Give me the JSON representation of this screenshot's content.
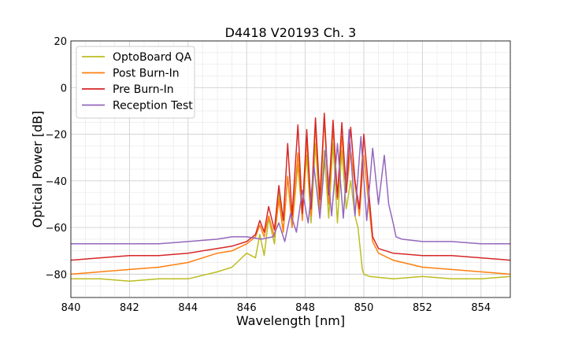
{
  "chart_data": {
    "type": "line",
    "title": "D4418 V20193 Ch. 3",
    "xlabel": "Wavelength [nm]",
    "ylabel": "Optical Power [dB]",
    "xlim": [
      840,
      855
    ],
    "ylim": [
      -90,
      20
    ],
    "x_ticks": [
      840,
      842,
      844,
      846,
      848,
      850,
      852,
      854
    ],
    "y_ticks": [
      20,
      0,
      -20,
      -40,
      -60,
      -80
    ],
    "x_tick_labels": [
      "840",
      "842",
      "844",
      "846",
      "848",
      "850",
      "852",
      "854"
    ],
    "y_tick_labels": [
      "20",
      "0",
      "−20",
      "−40",
      "−60",
      "−80"
    ],
    "grid": true,
    "legend_position": "top-left",
    "series": [
      {
        "name": "OptoBoard QA",
        "color": "#bcbd22",
        "x": [
          840.0,
          841.0,
          842.0,
          843.0,
          844.0,
          845.0,
          845.5,
          846.0,
          846.3,
          846.45,
          846.6,
          846.75,
          846.95,
          847.1,
          847.25,
          847.4,
          847.55,
          847.75,
          847.9,
          848.05,
          848.2,
          848.35,
          848.5,
          848.65,
          848.8,
          848.95,
          849.1,
          849.25,
          849.4,
          849.55,
          849.7,
          849.8,
          849.9,
          849.95,
          850.0,
          850.2,
          851.0,
          852.0,
          853.0,
          854.0,
          855.0
        ],
        "y": [
          -82,
          -82,
          -83,
          -82,
          -82,
          -79,
          -77,
          -71,
          -73,
          -63,
          -72,
          -56,
          -67,
          -45,
          -62,
          -38,
          -60,
          -33,
          -56,
          -29,
          -58,
          -24,
          -55,
          -27,
          -56,
          -24,
          -58,
          -27,
          -52,
          -40,
          -55,
          -60,
          -72,
          -78,
          -80,
          -81,
          -82,
          -81,
          -82,
          -82,
          -81
        ]
      },
      {
        "name": "Post Burn-In",
        "color": "#ff7f0e",
        "x": [
          840.0,
          841.0,
          842.0,
          843.0,
          844.0,
          845.0,
          845.5,
          846.0,
          846.3,
          846.45,
          846.6,
          846.75,
          846.95,
          847.1,
          847.25,
          847.4,
          847.55,
          847.75,
          847.9,
          848.05,
          848.2,
          848.35,
          848.5,
          848.65,
          848.8,
          848.95,
          849.1,
          849.25,
          849.4,
          849.55,
          849.7,
          849.85,
          850.0,
          850.15,
          850.3,
          850.5,
          851.0,
          852.0,
          853.0,
          854.0,
          855.0
        ],
        "y": [
          -80,
          -79,
          -78,
          -77,
          -75,
          -71,
          -70,
          -67,
          -64,
          -59,
          -64,
          -55,
          -64,
          -48,
          -62,
          -38,
          -60,
          -28,
          -57,
          -22,
          -55,
          -16,
          -52,
          -13,
          -50,
          -17,
          -48,
          -21,
          -45,
          -27,
          -42,
          -55,
          -29,
          -48,
          -66,
          -71,
          -74,
          -77,
          -78,
          -79,
          -80
        ]
      },
      {
        "name": "Pre Burn-In",
        "color": "#d62728",
        "x": [
          840.0,
          841.0,
          842.0,
          843.0,
          844.0,
          845.0,
          845.5,
          846.0,
          846.3,
          846.45,
          846.6,
          846.75,
          846.95,
          847.1,
          847.25,
          847.4,
          847.55,
          847.75,
          847.9,
          848.05,
          848.2,
          848.35,
          848.5,
          848.65,
          848.8,
          848.95,
          849.1,
          849.25,
          849.4,
          849.55,
          849.7,
          849.85,
          850.0,
          850.15,
          850.3,
          850.5,
          851.0,
          852.0,
          853.0,
          854.0,
          855.0
        ],
        "y": [
          -74,
          -73,
          -72,
          -72,
          -71,
          -69,
          -68,
          -66,
          -63,
          -57,
          -62,
          -51,
          -61,
          -42,
          -57,
          -24,
          -55,
          -16,
          -54,
          -18,
          -52,
          -13,
          -48,
          -11,
          -46,
          -14,
          -47,
          -15,
          -45,
          -17,
          -40,
          -52,
          -20,
          -42,
          -64,
          -69,
          -71,
          -72,
          -72,
          -73,
          -74
        ]
      },
      {
        "name": "Reception Test",
        "color": "#9467bd",
        "x": [
          840.0,
          841.0,
          842.0,
          843.0,
          844.0,
          845.0,
          845.5,
          846.0,
          846.5,
          846.9,
          847.1,
          847.3,
          847.5,
          847.7,
          847.9,
          848.1,
          848.3,
          848.5,
          848.7,
          848.9,
          849.1,
          849.3,
          849.5,
          849.7,
          849.9,
          850.1,
          850.3,
          850.5,
          850.7,
          850.85,
          851.0,
          851.1,
          851.3,
          852.0,
          853.0,
          854.0,
          855.0
        ],
        "y": [
          -67,
          -67,
          -67,
          -67,
          -66,
          -65,
          -64,
          -64,
          -65,
          -64,
          -58,
          -66,
          -54,
          -62,
          -44,
          -58,
          -34,
          -56,
          -26,
          -55,
          -24,
          -56,
          -18,
          -55,
          -21,
          -57,
          -26,
          -50,
          -29,
          -50,
          -58,
          -64,
          -65,
          -66,
          -66,
          -67,
          -67
        ]
      }
    ]
  }
}
